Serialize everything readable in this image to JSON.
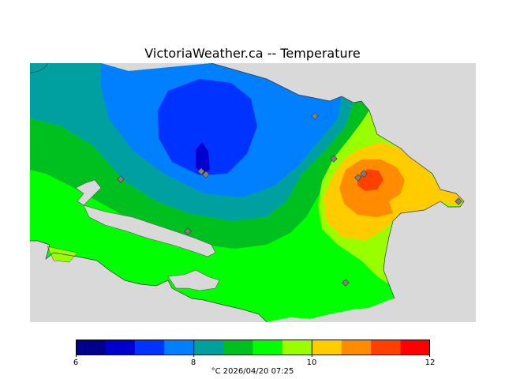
{
  "title": "VictoriaWeather.ca -- Temperature",
  "legend": {
    "colors": [
      "#00008b",
      "#0000cd",
      "#0033ff",
      "#0080ff",
      "#00a0a0",
      "#00c020",
      "#00ff00",
      "#99ff00",
      "#ffcc00",
      "#ff8c00",
      "#ff4000",
      "#ff0000"
    ],
    "min": 6,
    "max": 12,
    "tick_labels": [
      "6",
      "8",
      "10",
      "12"
    ],
    "unit_time": "°C  2026/04/20 07:25"
  },
  "map": {
    "background_color": "#d9d9d9",
    "station_marker_color": "#808080",
    "station_count": 10
  }
}
